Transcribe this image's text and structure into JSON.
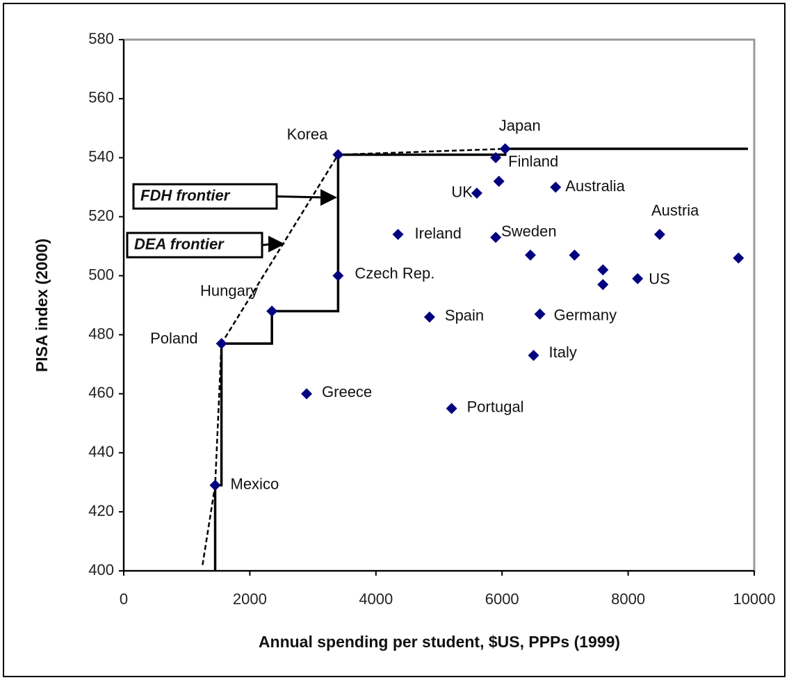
{
  "chart_data": {
    "type": "scatter",
    "x_label": "Annual spending per student, $US, PPPs (1999)",
    "y_label": "PISA index (2000)",
    "xlim": [
      0,
      10000
    ],
    "xticks": [
      0,
      2000,
      4000,
      6000,
      8000,
      10000
    ],
    "ylim": [
      400,
      580
    ],
    "yticks": [
      400,
      420,
      440,
      460,
      480,
      500,
      520,
      540,
      560,
      580
    ],
    "color": "#00007f",
    "points": {
      "labels": [
        "Korea",
        "Japan",
        "Finland",
        null,
        "UK",
        "Australia",
        "Austria",
        "Ireland",
        "Sweden",
        null,
        null,
        null,
        null,
        null,
        "US",
        "Czech Rep.",
        "Hungary",
        "Spain",
        "Germany",
        "Poland",
        "Italy",
        "Greece",
        "Portugal",
        "Mexico"
      ],
      "x": [
        3400,
        6050,
        5900,
        5950,
        5600,
        6850,
        8500,
        4350,
        5900,
        6450,
        7150,
        9750,
        7600,
        7600,
        8150,
        3400,
        2350,
        4850,
        6600,
        1550,
        6500,
        2900,
        5200,
        1450
      ],
      "y": [
        541,
        543,
        540,
        532,
        528,
        530,
        514,
        514,
        513,
        507,
        507,
        506,
        502,
        497,
        499,
        500,
        488,
        486,
        487,
        477,
        473,
        460,
        455,
        429
      ]
    },
    "frontiers": [
      {
        "label": "FDH frontier",
        "color": "#000000",
        "dashed": false,
        "x": [
          1450,
          1450,
          1550,
          1550,
          2350,
          2350,
          3400,
          3400,
          6050,
          6050,
          9900
        ],
        "y": [
          400,
          429,
          429,
          477,
          477,
          488,
          488,
          541,
          541,
          543,
          543
        ]
      },
      {
        "label": "DEA frontier",
        "color": "#000000",
        "dashed": true,
        "x": [
          1250,
          1450,
          1550,
          3400,
          6050
        ],
        "y": [
          402,
          429,
          477,
          541,
          543
        ]
      }
    ]
  }
}
